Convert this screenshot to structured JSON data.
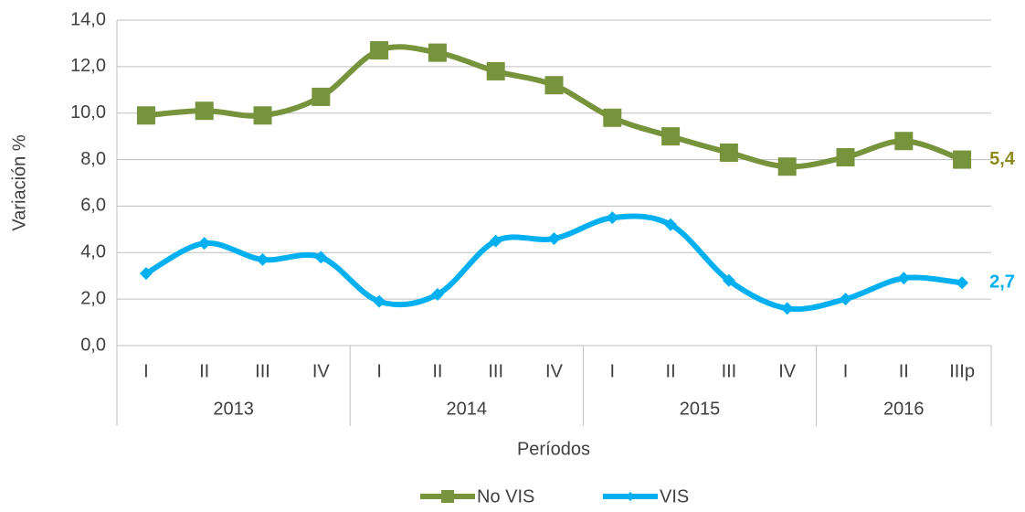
{
  "chart_data": {
    "type": "line",
    "y_label": "Variación %",
    "x_label": "Períodos",
    "category_groups": [
      {
        "name": "2013",
        "categories": [
          "I",
          "II",
          "III",
          "IV"
        ]
      },
      {
        "name": "2014",
        "categories": [
          "I",
          "II",
          "III",
          "IV"
        ]
      },
      {
        "name": "2015",
        "categories": [
          "I",
          "II",
          "III",
          "IV"
        ]
      },
      {
        "name": "2016",
        "categories": [
          "I",
          "II",
          "IIIp"
        ]
      }
    ],
    "series": [
      {
        "name": "No VIS",
        "color": "#77933c",
        "marker": "square",
        "values": [
          9.9,
          10.1,
          9.9,
          10.7,
          12.7,
          12.6,
          11.8,
          11.2,
          9.8,
          9.0,
          8.3,
          7.7,
          8.1,
          8.8,
          8.0
        ]
      },
      {
        "name": "VIS",
        "color": "#00b0f0",
        "marker": "diamond",
        "values": [
          3.1,
          4.4,
          3.7,
          3.8,
          1.9,
          2.2,
          4.5,
          4.6,
          5.5,
          5.2,
          2.8,
          1.6,
          2.0,
          2.9,
          2.7
        ]
      }
    ],
    "annotations": [
      {
        "text": "5,4",
        "color": "#8c8a1a"
      },
      {
        "text": "2,7",
        "color": "#00b0f0"
      }
    ],
    "ylim": [
      0,
      14
    ],
    "yticks": [
      {
        "value": 0,
        "label": "0,0"
      },
      {
        "value": 2,
        "label": "2,0"
      },
      {
        "value": 4,
        "label": "4,0"
      },
      {
        "value": 6,
        "label": "6,0"
      },
      {
        "value": 8,
        "label": "8,0"
      },
      {
        "value": 10,
        "label": "10,0"
      },
      {
        "value": 12,
        "label": "12,0"
      },
      {
        "value": 14,
        "label": "14,0"
      }
    ],
    "grid": true,
    "legend": "bottom"
  }
}
